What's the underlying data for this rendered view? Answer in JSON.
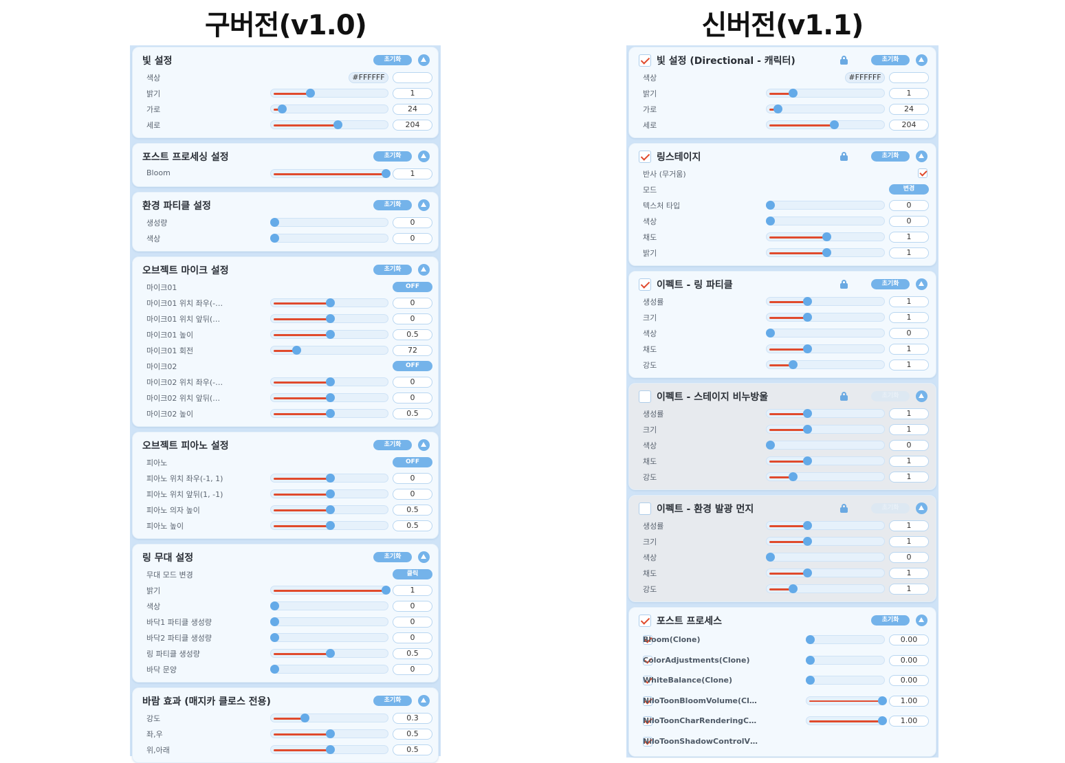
{
  "titles": {
    "left": "구버전(v1.0)",
    "right": "신버전(v1.1)"
  },
  "common": {
    "reset": "초기화"
  },
  "old": {
    "light": {
      "title": "빛 설정",
      "color_label": "색상",
      "color_hex": "#FFFFFF",
      "rows": [
        {
          "label": "밝기",
          "value": "1",
          "fraction": 0.32
        },
        {
          "label": "가로",
          "value": "24",
          "fraction": 0.07
        },
        {
          "label": "세로",
          "value": "204",
          "fraction": 0.57
        }
      ]
    },
    "post": {
      "title": "포스트 프로세싱 설정",
      "rows": [
        {
          "label": "Bloom",
          "value": "1",
          "fraction": 1.0
        }
      ]
    },
    "particle": {
      "title": "환경 파티클 설정",
      "rows": [
        {
          "label": "생성량",
          "value": "0",
          "fraction": 0
        },
        {
          "label": "색상",
          "value": "0",
          "fraction": 0
        }
      ]
    },
    "mic": {
      "title": "오브젝트 마이크 설정",
      "rows": [
        {
          "label": "마이크01",
          "toggle": "OFF"
        },
        {
          "label": "마이크01 위치 좌우(-…",
          "value": "0",
          "fraction": 0.5
        },
        {
          "label": "마이크01 위치 앞뒤(…",
          "value": "0",
          "fraction": 0.5
        },
        {
          "label": "마이크01 높이",
          "value": "0.5",
          "fraction": 0.5
        },
        {
          "label": "마이크01 회전",
          "value": "72",
          "fraction": 0.2
        },
        {
          "label": "마이크02",
          "toggle": "OFF"
        },
        {
          "label": "마이크02 위치 좌우(-…",
          "value": "0",
          "fraction": 0.5
        },
        {
          "label": "마이크02 위치 앞뒤(…",
          "value": "0",
          "fraction": 0.5
        },
        {
          "label": "마이크02 높이",
          "value": "0.5",
          "fraction": 0.5
        }
      ]
    },
    "piano": {
      "title": "오브젝트 피아노 설정",
      "rows": [
        {
          "label": "피아노",
          "toggle": "OFF"
        },
        {
          "label": "피아노 위치 좌우(-1, 1)",
          "value": "0",
          "fraction": 0.5
        },
        {
          "label": "피아노 위치 앞뒤(1, -1)",
          "value": "0",
          "fraction": 0.5
        },
        {
          "label": "피아노 의자 높이",
          "value": "0.5",
          "fraction": 0.5
        },
        {
          "label": "피아노 높이",
          "value": "0.5",
          "fraction": 0.5
        }
      ]
    },
    "ring": {
      "title": "링 무대 설정",
      "rows": [
        {
          "label": "무대 모드 변경",
          "toggle": "클릭"
        },
        {
          "label": "밝기",
          "value": "1",
          "fraction": 1.0
        },
        {
          "label": "색상",
          "value": "0",
          "fraction": 0
        },
        {
          "label": "바닥1 파티클 생성량",
          "value": "0",
          "fraction": 0
        },
        {
          "label": "바닥2 파티클 생성량",
          "value": "0",
          "fraction": 0
        },
        {
          "label": "링 파티클 생성량",
          "value": "0.5",
          "fraction": 0.5
        },
        {
          "label": "바닥 문양",
          "value": "0",
          "fraction": 0
        }
      ]
    },
    "wind": {
      "title": "바람 효과 (매지카 클로스 전용)",
      "rows": [
        {
          "label": "강도",
          "value": "0.3",
          "fraction": 0.27
        },
        {
          "label": "좌,우",
          "value": "0.5",
          "fraction": 0.5
        },
        {
          "label": "위,아래",
          "value": "0.5",
          "fraction": 0.5
        }
      ]
    }
  },
  "new": {
    "light": {
      "title": "빛 설정 (Directional - 캐릭터)",
      "checked": true,
      "color_label": "색상",
      "color_hex": "#FFFFFF",
      "rows": [
        {
          "label": "밝기",
          "value": "1",
          "fraction": 0.2
        },
        {
          "label": "가로",
          "value": "24",
          "fraction": 0.07
        },
        {
          "label": "세로",
          "value": "204",
          "fraction": 0.57
        }
      ]
    },
    "ringstage": {
      "title": "링스테이지",
      "checked": true,
      "reflect_label": "반사 (무거움)",
      "mode_label": "모드",
      "mode_button": "변경",
      "rows": [
        {
          "label": "텍스처 타입",
          "value": "0",
          "fraction": 0
        },
        {
          "label": "색상",
          "value": "0",
          "fraction": 0
        },
        {
          "label": "채도",
          "value": "1",
          "fraction": 0.5
        },
        {
          "label": "밝기",
          "value": "1",
          "fraction": 0.5
        }
      ]
    },
    "ringparticle": {
      "title": "이펙트 - 링 파티클",
      "checked": true,
      "rows": [
        {
          "label": "생성률",
          "value": "1",
          "fraction": 0.33
        },
        {
          "label": "크기",
          "value": "1",
          "fraction": 0.33
        },
        {
          "label": "색상",
          "value": "0",
          "fraction": 0
        },
        {
          "label": "채도",
          "value": "1",
          "fraction": 0.33
        },
        {
          "label": "강도",
          "value": "1",
          "fraction": 0.2
        }
      ]
    },
    "bubble": {
      "title": "이펙트 - 스테이지 비누방울",
      "checked": false,
      "rows": [
        {
          "label": "생성률",
          "value": "1",
          "fraction": 0.33
        },
        {
          "label": "크기",
          "value": "1",
          "fraction": 0.33
        },
        {
          "label": "색상",
          "value": "0",
          "fraction": 0
        },
        {
          "label": "채도",
          "value": "1",
          "fraction": 0.33
        },
        {
          "label": "강도",
          "value": "1",
          "fraction": 0.2
        }
      ]
    },
    "dust": {
      "title": "이펙트 - 환경 발광 먼지",
      "checked": false,
      "rows": [
        {
          "label": "생성률",
          "value": "1",
          "fraction": 0.33
        },
        {
          "label": "크기",
          "value": "1",
          "fraction": 0.33
        },
        {
          "label": "색상",
          "value": "0",
          "fraction": 0
        },
        {
          "label": "채도",
          "value": "1",
          "fraction": 0.33
        },
        {
          "label": "강도",
          "value": "1",
          "fraction": 0.2
        }
      ]
    },
    "postprocess": {
      "title": "포스트 프로세스",
      "checked": true,
      "rows": [
        {
          "label": "Bloom(Clone)",
          "value": "0.00",
          "fraction": 0,
          "checked": true
        },
        {
          "label": "ColorAdjustments(Clone)",
          "value": "0.00",
          "fraction": 0,
          "checked": true
        },
        {
          "label": "WhiteBalance(Clone)",
          "value": "0.00",
          "fraction": 0,
          "checked": true
        },
        {
          "label": "NiloToonBloomVolume(Cl…",
          "value": "1.00",
          "fraction": 1.0,
          "checked": true
        },
        {
          "label": "NiloToonCharRenderingC…",
          "value": "1.00",
          "fraction": 1.0,
          "checked": true
        },
        {
          "label": "NiloToonShadowControlV…",
          "checked": true
        }
      ]
    }
  }
}
